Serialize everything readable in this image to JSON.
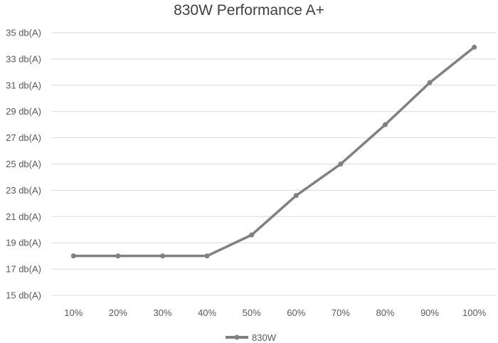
{
  "chart_data": {
    "type": "line",
    "title": "830W Performance A+",
    "xlabel": "",
    "ylabel": "",
    "categories": [
      "10%",
      "20%",
      "30%",
      "40%",
      "50%",
      "60%",
      "70%",
      "80%",
      "90%",
      "100%"
    ],
    "series": [
      {
        "name": "830W",
        "values": [
          18.0,
          18.0,
          18.0,
          18.0,
          19.6,
          22.6,
          25.0,
          28.0,
          31.2,
          33.9
        ]
      }
    ],
    "ylim": [
      15,
      35
    ],
    "yticks": [
      15,
      17,
      19,
      21,
      23,
      25,
      27,
      29,
      31,
      33,
      35
    ],
    "ytick_labels": [
      "15 db(A)",
      "17 db(A)",
      "19 db(A)",
      "21 db(A)",
      "23 db(A)",
      "25 db(A)",
      "27 db(A)",
      "29 db(A)",
      "31 db(A)",
      "33 db(A)",
      "35 db(A)"
    ],
    "grid": true,
    "legend": "bottom",
    "colors": {
      "series": "#808080",
      "grid": "#d9d9d9"
    }
  }
}
